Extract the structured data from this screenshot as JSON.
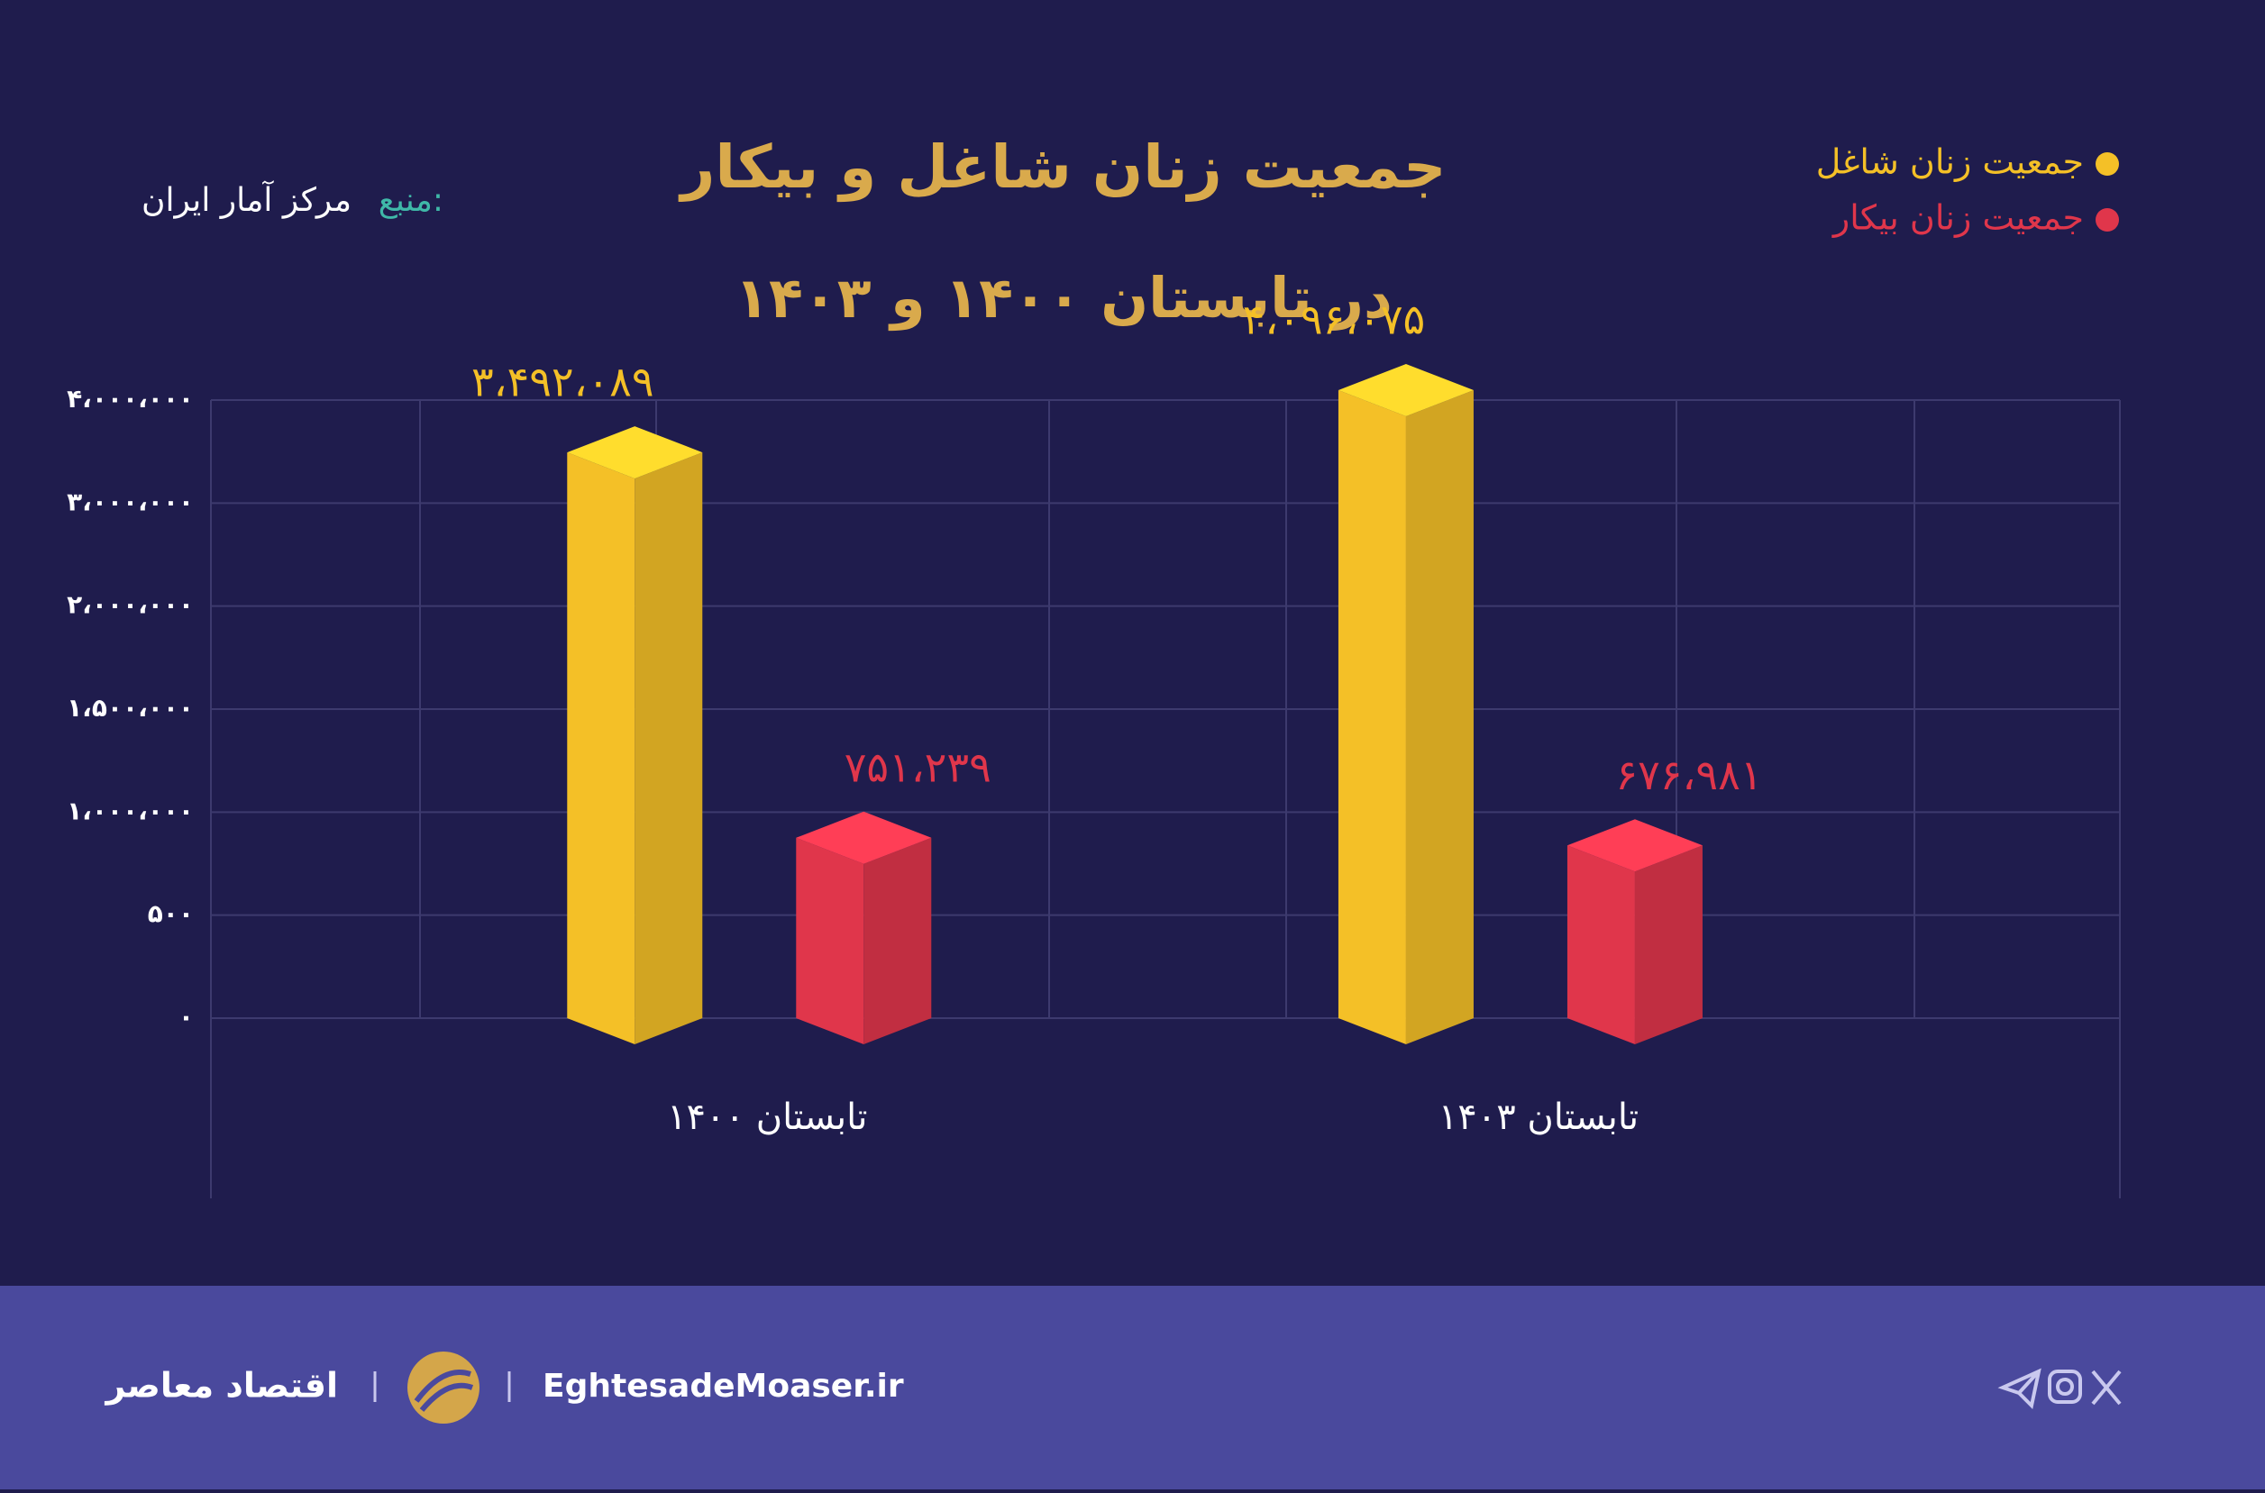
{
  "chart_data": {
    "type": "bar3d",
    "title": "جمعیت زنان شاغل و بیکار",
    "subtitle": "در تابستان ۱۴۰۰ و ۱۴۰۳",
    "source_label": "منبع:",
    "source": "مرکز آمار ایران",
    "categories": [
      "تابستان ۱۴۰۰",
      "تابستان ۱۴۰۳"
    ],
    "series": [
      {
        "name": "جمعیت زنان شاغل",
        "color": "#f4c027",
        "values": [
          3492089,
          4096075
        ],
        "value_labels": [
          "۳،۴۹۲،۰۸۹",
          "۴،۰۹۶،۰۷۵"
        ]
      },
      {
        "name": "جمعیت زنان بیکار",
        "color": "#e0364b",
        "values": [
          751239,
          676981
        ],
        "value_labels": [
          "۷۵۱،۲۳۹",
          "۶۷۶،۹۸۱"
        ]
      }
    ],
    "ylim": [
      0,
      4000000
    ],
    "yticks": [
      {
        "value": 0,
        "label": "۰"
      },
      {
        "value": 500,
        "label": "۵۰۰"
      },
      {
        "value": 1000000,
        "label": "۱،۰۰۰،۰۰۰"
      },
      {
        "value": 1500000,
        "label": "۱،۵۰۰،۰۰۰"
      },
      {
        "value": 2000000,
        "label": "۲،۰۰۰،۰۰۰"
      },
      {
        "value": 3000000,
        "label": "۳،۰۰۰،۰۰۰"
      },
      {
        "value": 4000000,
        "label": "۴،۰۰۰،۰۰۰"
      }
    ],
    "grid": true
  },
  "footer": {
    "brand": "اقتصاد معاصر",
    "site": "EghtesadeMoaser.ir"
  }
}
